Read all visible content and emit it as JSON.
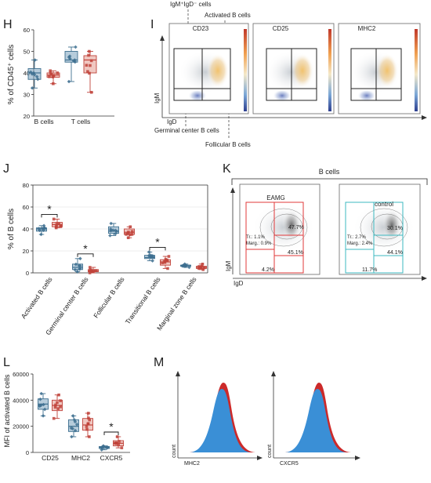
{
  "colors": {
    "blue": "#3d6f8f",
    "blue_fill": "#7aa2bd",
    "red": "#c0423a",
    "red_fill": "#e49a8f",
    "hist_blue": "#3a8fd6",
    "hist_red": "#cc2a2a",
    "eamg_gate": "#e0383a",
    "control_gate": "#3cb8c0"
  },
  "panels": {
    "H": {
      "letter": "H",
      "ylabel": "% of CD45⁺ cells",
      "yticks": [
        "20",
        "30",
        "40",
        "50",
        "60"
      ]
    },
    "I": {
      "letter": "I",
      "top_label_1": "IgM⁺IgD⁻ cells",
      "top_label_2": "Activated B cells",
      "bottom_label_1": "Germinal center B cells",
      "bottom_label_2": "Follicular B cells",
      "plot_titles": [
        "CD23",
        "CD25",
        "MHC2"
      ],
      "yaxis": "IgM",
      "xaxis": "IgD"
    },
    "J": {
      "letter": "J",
      "ylabel": "% of B cells",
      "yticks": [
        "0",
        "20",
        "40",
        "60",
        "80"
      ]
    },
    "K": {
      "letter": "K",
      "header": "B cells",
      "yaxis": "IgM",
      "xaxis": "IgD",
      "eamg": {
        "title": "EAMG",
        "q_tr": "47.7%",
        "q_br": "45.1%",
        "q_bl": "4.2%",
        "tr_line": "Tr.: 1.1%",
        "marg_line": "Marg.: 0.9%"
      },
      "control": {
        "title": "control",
        "q_tr": "30.1%",
        "q_br": "44.1%",
        "q_bl": "11.7%",
        "tr_line": "Tr.: 2.7%",
        "marg_line": "Marg.: 2.4%"
      }
    },
    "L": {
      "letter": "L",
      "ylabel": "MFI of activated B cells",
      "yticks": [
        "0",
        "20000",
        "40000",
        "60000"
      ]
    },
    "M": {
      "letter": "M",
      "ylabel": "count",
      "xlabels": [
        "MHC2",
        "CXCR5"
      ]
    }
  },
  "chart_data": [
    {
      "panel": "H",
      "type": "box",
      "categories": [
        "B cells",
        "T cells"
      ],
      "ylim": [
        20,
        60
      ],
      "series": [
        {
          "values": [
            [
              33,
              37,
              40,
              42,
              46
            ],
            [
              36,
              45,
              46,
              50,
              52
            ]
          ]
        },
        {
          "values": [
            [
              35,
              38,
              39,
              40,
              41
            ],
            [
              31,
              40,
              46,
              48,
              50
            ]
          ]
        }
      ]
    },
    {
      "panel": "J",
      "type": "box",
      "categories": [
        "Activated B cells",
        "Germinal center B cells",
        "Follicular B cells",
        "Transitional B cells",
        "Marginal zone B cells"
      ],
      "ylim": [
        0,
        80
      ],
      "series": [
        {
          "values": [
            [
              35,
              38,
              40,
              41,
              43
            ],
            [
              1,
              3,
              5,
              8,
              13
            ],
            [
              34,
              36,
              38,
              42,
              45
            ],
            [
              11,
              13,
              14,
              16,
              19
            ],
            [
              5,
              6,
              7,
              7,
              8
            ]
          ]
        },
        {
          "values": [
            [
              41,
              42,
              44,
              46,
              49
            ],
            [
              0,
              1,
              2,
              3,
              5
            ],
            [
              32,
              35,
              37,
              40,
              42
            ],
            [
              4,
              7,
              10,
              12,
              15
            ],
            [
              3,
              4,
              5,
              6,
              8
            ]
          ]
        }
      ],
      "significance": [
        "*",
        "*",
        "",
        "*",
        ""
      ]
    },
    {
      "panel": "L",
      "type": "box",
      "categories": [
        "CD25",
        "MHC2",
        "CXCR5"
      ],
      "ylim": [
        0,
        60000
      ],
      "series": [
        {
          "values": [
            [
              28000,
              33000,
              37000,
              41000,
              45000
            ],
            [
              12000,
              16000,
              20000,
              25000,
              28000
            ],
            [
              2000,
              3000,
              4000,
              4500,
              5000
            ]
          ]
        },
        {
          "values": [
            [
              26000,
              32000,
              36000,
              40000,
              44000
            ],
            [
              12000,
              17000,
              21000,
              26000,
              30000
            ],
            [
              3500,
              5000,
              7000,
              9000,
              12000
            ]
          ]
        }
      ],
      "significance": [
        "",
        "",
        "*"
      ]
    }
  ]
}
